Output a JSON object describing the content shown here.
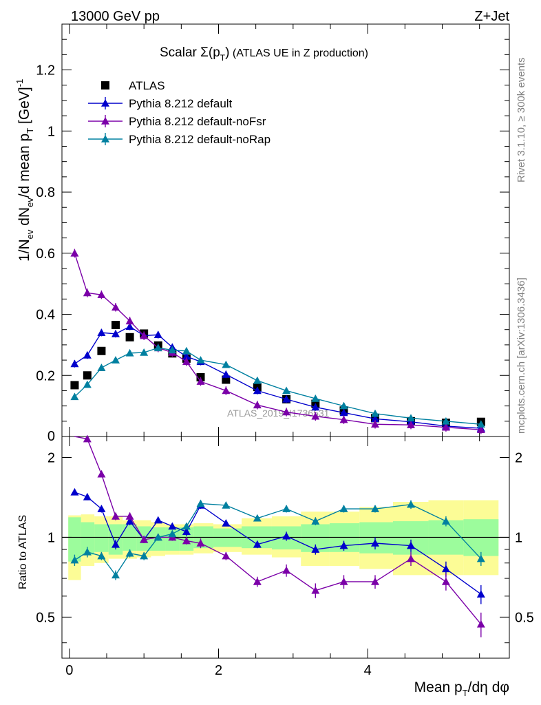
{
  "header": {
    "left": "13000 GeV pp",
    "right": "Z+Jet"
  },
  "title": {
    "main": "Scalar Σ(p",
    "sub": "T",
    "close": ")",
    "extra": " (ATLAS UE in Z production)"
  },
  "side_labels": {
    "rivet": "Rivet 3.1.10, ≥ 300k events",
    "mcplots": "mcplots.cern.ch [arXiv:1306.3436]"
  },
  "watermark": "ATLAS_2019_I1736531",
  "axes": {
    "ylabel_top": "1/N_ev dN_ev/d mean p_T [GeV]^-1",
    "ylabel_bottom": "Ratio to ATLAS",
    "xlabel": "Mean p_T/dη dφ"
  },
  "colors": {
    "atlas": "#000000",
    "default": "#0000cc",
    "noFsr": "#7b00a8",
    "noRap": "#0080a0",
    "band_inner": "#9cfc9c",
    "band_outer": "#fcfc96"
  },
  "legend": [
    {
      "label": "ATLAS",
      "key": "atlas"
    },
    {
      "label": "Pythia 8.212 default",
      "key": "default"
    },
    {
      "label": "Pythia 8.212 default-noFsr",
      "key": "noFsr"
    },
    {
      "label": "Pythia 8.212 default-noRap",
      "key": "noRap"
    }
  ],
  "chart_data": {
    "type": "scatter",
    "x": [
      0.07,
      0.24,
      0.43,
      0.62,
      0.81,
      1.0,
      1.19,
      1.38,
      1.57,
      1.76,
      2.1,
      2.52,
      2.91,
      3.3,
      3.68,
      4.1,
      4.58,
      5.05,
      5.52
    ],
    "main": {
      "xlim": [
        -0.1,
        5.9
      ],
      "ylim": [
        0,
        1.35
      ],
      "xticks": [
        0,
        2,
        4
      ],
      "yticks": [
        0.2,
        0.4,
        0.6,
        0.8,
        1.0,
        1.2
      ],
      "ytick_labels": [
        "0.2",
        "0.4",
        "0.6",
        "0.8",
        "1",
        "1.2"
      ],
      "y0_label": "0",
      "series": [
        {
          "name": "ATLAS",
          "key": "atlas",
          "values": [
            0.168,
            0.2,
            0.28,
            0.365,
            0.325,
            0.337,
            0.298,
            0.272,
            0.255,
            0.194,
            0.186,
            0.162,
            0.122,
            0.107,
            0.085,
            0.06,
            0.05,
            0.045,
            0.048
          ]
        },
        {
          "name": "Pythia 8.212 default",
          "key": "default",
          "values": [
            0.238,
            0.266,
            0.34,
            0.336,
            0.36,
            0.33,
            0.333,
            0.292,
            0.262,
            0.245,
            0.203,
            0.15,
            0.122,
            0.096,
            0.078,
            0.058,
            0.048,
            0.034,
            0.027
          ]
        },
        {
          "name": "Pythia 8.212 default-noFsr",
          "key": "noFsr",
          "values": [
            0.6,
            0.47,
            0.464,
            0.423,
            0.378,
            0.33,
            0.29,
            0.275,
            0.245,
            0.18,
            0.15,
            0.103,
            0.08,
            0.066,
            0.055,
            0.04,
            0.038,
            0.03,
            0.022
          ]
        },
        {
          "name": "Pythia 8.212 default-noRap",
          "key": "noRap",
          "values": [
            0.13,
            0.17,
            0.225,
            0.25,
            0.273,
            0.275,
            0.29,
            0.283,
            0.28,
            0.25,
            0.235,
            0.183,
            0.15,
            0.124,
            0.1,
            0.075,
            0.06,
            0.05,
            0.04
          ]
        }
      ],
      "errors": {
        "default": 0.012,
        "noFsr": 0.014,
        "noRap": 0.01
      }
    },
    "ratio": {
      "ylim": [
        0.35,
        2.4
      ],
      "yticks": [
        0.5,
        1,
        2
      ],
      "ytick_labels": [
        "0.5",
        "1",
        "2"
      ],
      "band_inner": [
        [
          0.81,
          1.19
        ],
        [
          0.86,
          1.14
        ],
        [
          0.88,
          1.12
        ],
        [
          0.86,
          1.12
        ],
        [
          0.89,
          1.12
        ],
        [
          0.89,
          1.1
        ],
        [
          0.89,
          1.09
        ],
        [
          0.89,
          1.09
        ],
        [
          0.89,
          1.09
        ],
        [
          0.91,
          1.1
        ],
        [
          0.92,
          1.08
        ],
        [
          0.91,
          1.1
        ],
        [
          0.9,
          1.1
        ],
        [
          0.88,
          1.12
        ],
        [
          0.88,
          1.13
        ],
        [
          0.87,
          1.14
        ],
        [
          0.86,
          1.15
        ],
        [
          0.86,
          1.16
        ],
        [
          0.85,
          1.17
        ]
      ],
      "band_outer": [
        [
          0.69,
          1.21
        ],
        [
          0.78,
          1.22
        ],
        [
          0.8,
          1.2
        ],
        [
          0.83,
          1.2
        ],
        [
          0.83,
          1.16
        ],
        [
          0.84,
          1.16
        ],
        [
          0.85,
          1.14
        ],
        [
          0.86,
          1.12
        ],
        [
          0.86,
          1.12
        ],
        [
          0.87,
          1.13
        ],
        [
          0.88,
          1.12
        ],
        [
          0.86,
          1.18
        ],
        [
          0.84,
          1.2
        ],
        [
          0.78,
          1.25
        ],
        [
          0.78,
          1.25
        ],
        [
          0.76,
          1.3
        ],
        [
          0.72,
          1.36
        ],
        [
          0.72,
          1.38
        ],
        [
          0.72,
          1.38
        ]
      ],
      "series": [
        {
          "name": "Pythia 8.212 default",
          "key": "default",
          "values": [
            1.48,
            1.42,
            1.28,
            0.94,
            1.15,
            0.98,
            1.16,
            1.1,
            1.05,
            1.32,
            1.13,
            0.94,
            1.01,
            0.9,
            0.93,
            0.95,
            0.93,
            0.76,
            0.61
          ],
          "errors": [
            0.04,
            0.04,
            0.04,
            0.04,
            0.04,
            0.03,
            0.03,
            0.03,
            0.04,
            0.04,
            0.03,
            0.03,
            0.04,
            0.04,
            0.04,
            0.05,
            0.05,
            0.05,
            0.05
          ]
        },
        {
          "name": "Pythia 8.212 default-noFsr",
          "key": "noFsr",
          "values": [
            2.4,
            2.35,
            1.73,
            1.2,
            1.2,
            0.98,
            1.0,
            1.0,
            0.97,
            0.95,
            0.85,
            0.68,
            0.75,
            0.63,
            0.68,
            0.68,
            0.83,
            0.68,
            0.47
          ],
          "errors": [
            0.05,
            0.05,
            0.04,
            0.04,
            0.04,
            0.03,
            0.03,
            0.03,
            0.03,
            0.04,
            0.03,
            0.03,
            0.04,
            0.04,
            0.04,
            0.04,
            0.05,
            0.05,
            0.05
          ]
        },
        {
          "name": "Pythia 8.212 default-noRap",
          "key": "noRap",
          "values": [
            0.82,
            0.88,
            0.85,
            0.72,
            0.87,
            0.85,
            1.0,
            1.03,
            1.1,
            1.34,
            1.32,
            1.18,
            1.28,
            1.15,
            1.28,
            1.28,
            1.33,
            1.15,
            0.83
          ],
          "errors": [
            0.04,
            0.04,
            0.03,
            0.03,
            0.03,
            0.03,
            0.03,
            0.03,
            0.03,
            0.04,
            0.03,
            0.03,
            0.04,
            0.04,
            0.04,
            0.04,
            0.05,
            0.05,
            0.05
          ]
        }
      ]
    }
  }
}
